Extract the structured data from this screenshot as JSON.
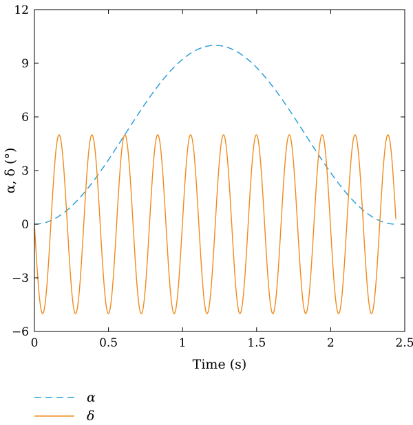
{
  "chart_data": {
    "type": "line",
    "xlabel": "Time (s)",
    "ylabel": "α, δ (°)",
    "xlim": [
      0,
      2.5
    ],
    "ylim": [
      -6,
      12
    ],
    "xticks": [
      0,
      0.5,
      1,
      1.5,
      2,
      2.5
    ],
    "xtick_labels": [
      "0",
      "0.5",
      "1",
      "1.5",
      "2",
      "2.5"
    ],
    "yticks": [
      -6,
      -3,
      0,
      3,
      6,
      9,
      12
    ],
    "ytick_labels": [
      "−6",
      "−3",
      "0",
      "3",
      "6",
      "9",
      "12"
    ],
    "grid": false,
    "legend_position": "bottom-left, below plot",
    "series": [
      {
        "name": "α",
        "style": "dashed",
        "color": "#2b9fd8",
        "x": [
          0.0,
          0.05,
          0.1,
          0.15,
          0.2,
          0.25,
          0.3,
          0.35,
          0.4,
          0.45,
          0.5,
          0.55,
          0.6,
          0.65,
          0.7,
          0.75,
          0.8,
          0.85,
          0.9,
          0.95,
          1.0,
          1.05,
          1.1,
          1.15,
          1.2,
          1.25,
          1.3,
          1.35,
          1.4,
          1.45,
          1.5,
          1.55,
          1.6,
          1.65,
          1.7,
          1.75,
          1.8,
          1.85,
          1.9,
          1.95,
          2.0,
          2.05,
          2.1,
          2.15,
          2.2,
          2.25,
          2.3,
          2.35,
          2.4,
          2.44
        ],
        "y": [
          0.0,
          0.04,
          0.17,
          0.37,
          0.65,
          1.0,
          1.41,
          1.88,
          2.39,
          2.94,
          3.52,
          4.11,
          4.71,
          5.31,
          5.89,
          6.45,
          6.97,
          7.45,
          7.88,
          8.26,
          8.58,
          8.84,
          9.03,
          9.16,
          9.22,
          9.22,
          9.16,
          9.03,
          8.84,
          8.58,
          8.26,
          7.88,
          7.45,
          6.97,
          6.45,
          5.89,
          5.31,
          4.71,
          4.11,
          3.52,
          2.94,
          2.39,
          1.88,
          1.41,
          1.0,
          0.65,
          0.37,
          0.17,
          0.04,
          0.0
        ]
      },
      {
        "name": "δ",
        "style": "solid",
        "color": "#f08a1c",
        "amplitude": 5,
        "period": 0.222,
        "x_start": 0.0,
        "x_end": 2.44,
        "note": "sinusoid: δ = -5 sin(2π t / T)",
        "x": [
          0.0,
          0.0555,
          0.111,
          0.1665,
          0.222,
          0.2775,
          0.333,
          0.3885,
          0.444,
          0.4995,
          0.555,
          0.6105,
          0.666,
          0.7215,
          0.777,
          0.8325,
          0.888,
          0.9435,
          0.999,
          1.0545,
          1.11,
          1.1655,
          1.221,
          1.2765,
          1.332,
          1.3875,
          1.443,
          1.4985,
          1.554,
          1.6095,
          1.665,
          1.7205,
          1.776,
          1.8315,
          1.887,
          1.9425,
          1.998,
          2.0535,
          2.109,
          2.1645,
          2.22,
          2.2755,
          2.331,
          2.3865,
          2.44
        ],
        "y": [
          0,
          -5,
          0,
          5,
          0,
          -5,
          0,
          5,
          0,
          -5,
          0,
          5,
          0,
          -5,
          0,
          5,
          0,
          -5,
          0,
          5,
          0,
          -5,
          0,
          5,
          0,
          -5,
          0,
          5,
          0,
          -5,
          0,
          5,
          0,
          -5,
          0,
          5,
          0,
          -5,
          0,
          5,
          0,
          -5,
          0,
          5,
          0
        ]
      }
    ]
  }
}
